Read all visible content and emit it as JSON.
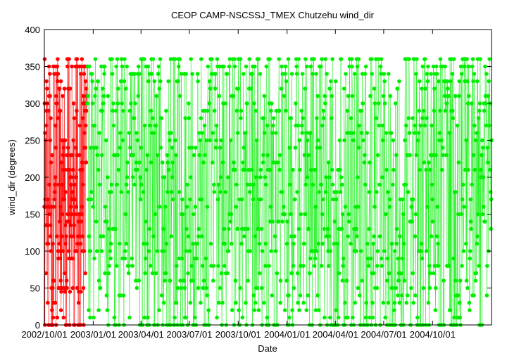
{
  "chart_data": {
    "type": "line",
    "title": "CEOP CAMP-NSCSSJ_TMEX Chutzehu  wind_dir",
    "xlabel": "Date",
    "ylabel": "wind_dir (degrees)",
    "x_range": [
      "2002-10-01",
      "2005-01-20"
    ],
    "ylim": [
      0,
      400
    ],
    "y_ticks": [
      0,
      50,
      100,
      150,
      200,
      250,
      300,
      350,
      400
    ],
    "x_ticks": [
      {
        "date": "2002-10-01",
        "label": "2002/10/01"
      },
      {
        "date": "2003-01-01",
        "label": "2003/01/01"
      },
      {
        "date": "2003-04-01",
        "label": "2003/04/01"
      },
      {
        "date": "2003-07-01",
        "label": "2003/07/01"
      },
      {
        "date": "2003-10-01",
        "label": "2003/10/01"
      },
      {
        "date": "2004-01-01",
        "label": "2004/01/01"
      },
      {
        "date": "2004-04-01",
        "label": "2004/04/01"
      },
      {
        "date": "2004-07-01",
        "label": "2004/07/01"
      },
      {
        "date": "2004-10-01",
        "label": "2004/10/01"
      }
    ],
    "grid": false,
    "markers": "filled circles",
    "series": [
      {
        "color": "#ff0000",
        "x_range": [
          "2002-10-01",
          "2002-12-20"
        ],
        "value_levels": [
          0,
          10,
          20,
          30,
          45,
          50,
          60,
          70,
          90,
          100,
          110,
          120,
          135,
          140,
          150,
          160,
          170,
          180,
          190,
          200,
          210,
          220,
          230,
          240,
          250,
          260,
          270,
          280,
          290,
          300,
          310,
          320,
          330,
          340,
          350,
          360
        ],
        "y_range": [
          0,
          360
        ]
      },
      {
        "color": "#00ee00",
        "x_range": [
          "2002-12-21",
          "2005-01-20"
        ],
        "value_levels": [
          0,
          10,
          20,
          30,
          40,
          50,
          60,
          70,
          80,
          90,
          100,
          110,
          120,
          130,
          140,
          150,
          160,
          170,
          180,
          190,
          200,
          210,
          220,
          230,
          240,
          250,
          260,
          270,
          280,
          290,
          300,
          310,
          320,
          330,
          340,
          350,
          360
        ],
        "y_range": [
          0,
          360
        ]
      }
    ]
  }
}
